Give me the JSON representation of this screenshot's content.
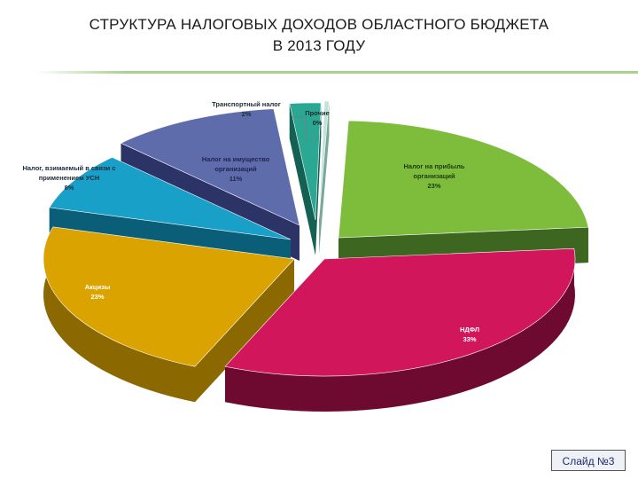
{
  "slide": {
    "title_line1": "СТРУКТУРА НАЛОГОВЫХ ДОХОДОВ ОБЛАСТНОГО БЮДЖЕТА",
    "title_line2": "В 2013 ГОДУ",
    "badge": "Слайд №3"
  },
  "chart_data": {
    "type": "pie",
    "title": "СТРУКТУРА НАЛОГОВЫХ ДОХОДОВ ОБЛАСТНОГО БЮДЖЕТА В 2013 ГОДУ",
    "style": "3d-exploded",
    "slices": [
      {
        "label_lines": [
          "Налог на прибыль",
          "организаций"
        ],
        "pct_label": "23%",
        "value": 23,
        "color": "#7ebc3c",
        "side": "#3d6620"
      },
      {
        "label_lines": [
          "НДФЛ"
        ],
        "pct_label": "33%",
        "value": 33,
        "color": "#d2165c",
        "side": "#6e0a30"
      },
      {
        "label_lines": [
          "Акцизы"
        ],
        "pct_label": "23%",
        "value": 23,
        "color": "#dba300",
        "side": "#8c6800"
      },
      {
        "label_lines": [
          "Налог, взимаемый в связи с",
          "применением УСН"
        ],
        "pct_label": "8%",
        "value": 8,
        "color": "#19a0c8",
        "side": "#0b5e78"
      },
      {
        "label_lines": [
          "Налог на имущество",
          "организаций"
        ],
        "pct_label": "11%",
        "value": 11,
        "color": "#5e6cac",
        "side": "#2c3366"
      },
      {
        "label_lines": [
          "Транспортный налог"
        ],
        "pct_label": "2%",
        "value": 2,
        "color": "#2aa894",
        "side": "#146052"
      },
      {
        "label_lines": [
          "Прочие"
        ],
        "pct_label": "0%",
        "value": 0,
        "color": "#bfe3d8",
        "side": "#7aa89a"
      }
    ],
    "legend": "none"
  }
}
